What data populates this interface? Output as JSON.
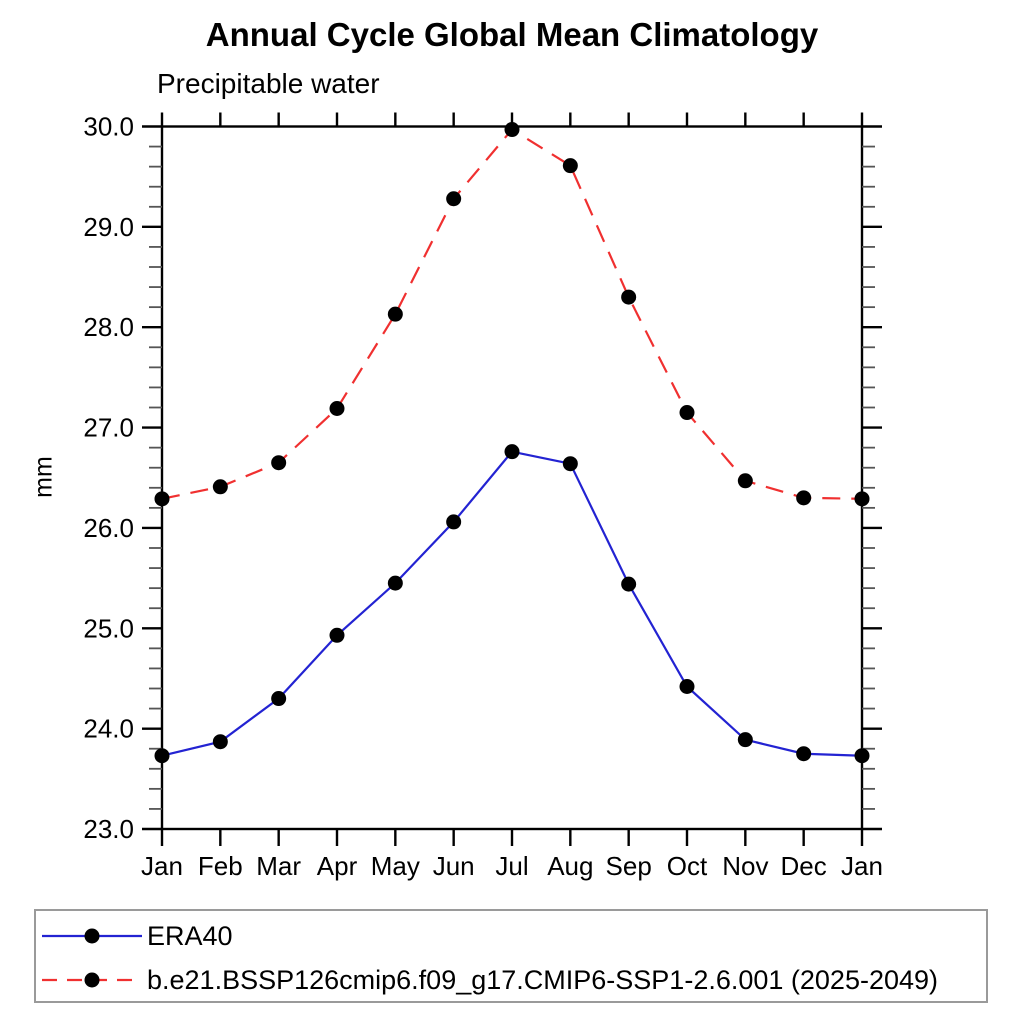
{
  "chart_data": {
    "type": "line",
    "title": "Annual Cycle Global Mean Climatology",
    "subtitle": "Precipitable water",
    "ylabel": "mm",
    "xlabel": "",
    "categories": [
      "Jan",
      "Feb",
      "Mar",
      "Apr",
      "May",
      "Jun",
      "Jul",
      "Aug",
      "Sep",
      "Oct",
      "Nov",
      "Dec",
      "Jan"
    ],
    "series": [
      {
        "name": "ERA40",
        "color": "#2323d2",
        "line_style": "solid",
        "marker": "black-filled-circle",
        "values": [
          23.73,
          23.87,
          24.3,
          24.93,
          25.45,
          26.06,
          26.76,
          26.64,
          25.44,
          24.42,
          23.89,
          23.75,
          23.73
        ]
      },
      {
        "name": "b.e21.BSSP126cmip6.f09_g17.CMIP6-SSP1-2.6.001 (2025-2049)",
        "color": "#f03030",
        "line_style": "dashed",
        "marker": "black-filled-circle",
        "values": [
          26.29,
          26.41,
          26.65,
          27.19,
          28.13,
          29.28,
          29.97,
          29.61,
          28.3,
          27.15,
          26.47,
          26.3,
          26.29
        ]
      }
    ],
    "ylim": [
      23.0,
      30.0
    ],
    "ytick_step": 1.0,
    "y_minor_step": 0.2,
    "ytick_labels": [
      "23.0",
      "24.0",
      "25.0",
      "26.0",
      "27.0",
      "28.0",
      "29.0",
      "30.0"
    ],
    "grid": false,
    "frame": "box-with-outward-ticks",
    "legend_position": "bottom-left-box",
    "marker_color": "#000000",
    "axis_color": "#000000"
  }
}
